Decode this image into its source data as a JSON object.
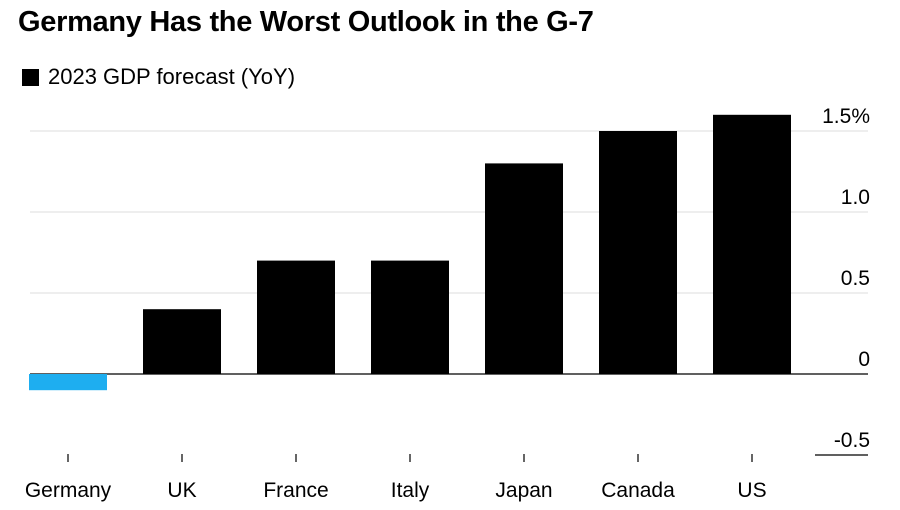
{
  "title": "Germany Has the Worst Outlook in the G-7",
  "legend": {
    "label": "2023 GDP forecast (YoY)",
    "color": "#000000"
  },
  "colors": {
    "bar": "#000000",
    "highlight": "#1eaef0",
    "grid": "#dcdcdc",
    "axis": "#000000"
  },
  "chart_data": {
    "type": "bar",
    "categories": [
      "Germany",
      "UK",
      "France",
      "Italy",
      "Japan",
      "Canada",
      "US"
    ],
    "series": [
      {
        "name": "2023 GDP forecast (YoY)",
        "values": [
          -0.1,
          0.4,
          0.7,
          0.7,
          1.3,
          1.5,
          1.6
        ]
      }
    ],
    "highlight": [
      "Germany"
    ],
    "y_ticks": [
      {
        "value": 1.5,
        "label": "1.5%"
      },
      {
        "value": 1.0,
        "label": "1.0"
      },
      {
        "value": 0.5,
        "label": "0.5"
      },
      {
        "value": 0,
        "label": "0"
      },
      {
        "value": -0.5,
        "label": "-0.5"
      }
    ],
    "ylim": [
      -0.5,
      1.6
    ],
    "grid": true,
    "y_axis_side": "right"
  }
}
